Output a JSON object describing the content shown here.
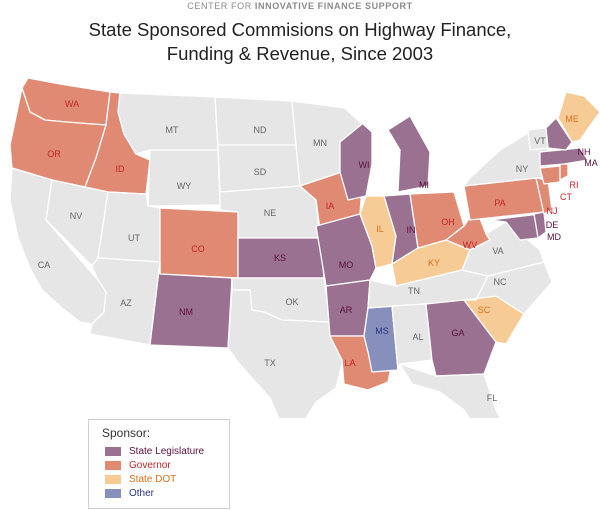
{
  "header": {
    "org_prefix": "CENTER FOR",
    "org_name": "INNOVATIVE FINANCE SUPPORT",
    "title_line1": "State Sponsored Commisions on Highway Finance,",
    "title_line2": "Funding & Revenue, Since 2003"
  },
  "colors": {
    "land": "#e6e6e6",
    "border": "#ffffff",
    "state_legislature": "#9a7190",
    "governor": "#e08a73",
    "state_dot": "#f7cb95",
    "other": "#8790bd",
    "label_default": "#666666",
    "label_legislature": "#5a1040",
    "label_governor": "#c0262a",
    "label_dot": "#d9701e",
    "label_other": "#2a3580"
  },
  "legend": {
    "title": "Sponsor:",
    "items": [
      {
        "key": "state_legislature",
        "label": "State Legislature"
      },
      {
        "key": "governor",
        "label": "Governor"
      },
      {
        "key": "state_dot",
        "label": "State DOT"
      },
      {
        "key": "other",
        "label": "Other"
      }
    ]
  },
  "states": [
    {
      "abbr": "WA",
      "sponsor": "governor"
    },
    {
      "abbr": "OR",
      "sponsor": "governor"
    },
    {
      "abbr": "CA",
      "sponsor": "none"
    },
    {
      "abbr": "ID",
      "sponsor": "governor"
    },
    {
      "abbr": "NV",
      "sponsor": "none"
    },
    {
      "abbr": "MT",
      "sponsor": "none"
    },
    {
      "abbr": "WY",
      "sponsor": "none"
    },
    {
      "abbr": "UT",
      "sponsor": "none"
    },
    {
      "abbr": "AZ",
      "sponsor": "none"
    },
    {
      "abbr": "CO",
      "sponsor": "governor"
    },
    {
      "abbr": "NM",
      "sponsor": "state_legislature"
    },
    {
      "abbr": "ND",
      "sponsor": "none"
    },
    {
      "abbr": "SD",
      "sponsor": "none"
    },
    {
      "abbr": "NE",
      "sponsor": "none"
    },
    {
      "abbr": "KS",
      "sponsor": "state_legislature"
    },
    {
      "abbr": "OK",
      "sponsor": "none"
    },
    {
      "abbr": "TX",
      "sponsor": "none"
    },
    {
      "abbr": "MN",
      "sponsor": "none"
    },
    {
      "abbr": "IA",
      "sponsor": "governor"
    },
    {
      "abbr": "MO",
      "sponsor": "state_legislature"
    },
    {
      "abbr": "AR",
      "sponsor": "state_legislature"
    },
    {
      "abbr": "LA",
      "sponsor": "governor"
    },
    {
      "abbr": "WI",
      "sponsor": "state_legislature"
    },
    {
      "abbr": "IL",
      "sponsor": "state_dot"
    },
    {
      "abbr": "MS",
      "sponsor": "other"
    },
    {
      "abbr": "MI",
      "sponsor": "state_legislature"
    },
    {
      "abbr": "IN",
      "sponsor": "state_legislature"
    },
    {
      "abbr": "KY",
      "sponsor": "state_dot"
    },
    {
      "abbr": "TN",
      "sponsor": "none"
    },
    {
      "abbr": "AL",
      "sponsor": "none"
    },
    {
      "abbr": "OH",
      "sponsor": "governor"
    },
    {
      "abbr": "GA",
      "sponsor": "state_legislature"
    },
    {
      "abbr": "FL",
      "sponsor": "none"
    },
    {
      "abbr": "SC",
      "sponsor": "state_dot"
    },
    {
      "abbr": "NC",
      "sponsor": "none"
    },
    {
      "abbr": "WV",
      "sponsor": "governor"
    },
    {
      "abbr": "VA",
      "sponsor": "none"
    },
    {
      "abbr": "PA",
      "sponsor": "governor"
    },
    {
      "abbr": "NY",
      "sponsor": "none"
    },
    {
      "abbr": "MD",
      "sponsor": "state_legislature"
    },
    {
      "abbr": "DE",
      "sponsor": "state_legislature"
    },
    {
      "abbr": "NJ",
      "sponsor": "governor"
    },
    {
      "abbr": "CT",
      "sponsor": "governor"
    },
    {
      "abbr": "RI",
      "sponsor": "governor"
    },
    {
      "abbr": "MA",
      "sponsor": "state_legislature"
    },
    {
      "abbr": "VT",
      "sponsor": "none"
    },
    {
      "abbr": "NH",
      "sponsor": "state_legislature"
    },
    {
      "abbr": "ME",
      "sponsor": "state_dot"
    }
  ]
}
